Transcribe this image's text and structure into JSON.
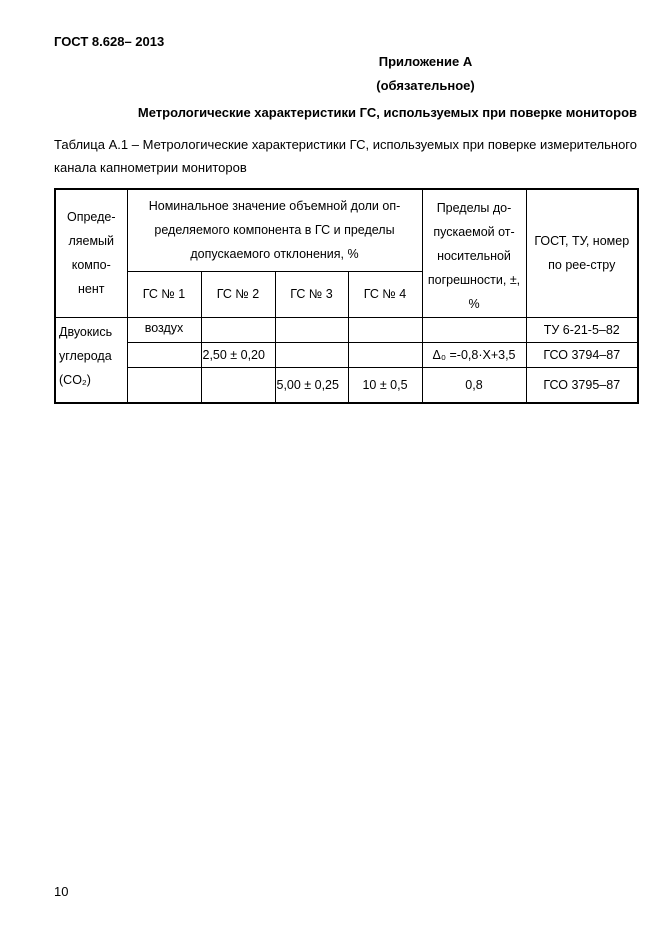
{
  "header": {
    "doc_id": "ГОСТ 8.628– 2013"
  },
  "appendix": {
    "title": "Приложение А",
    "status": "(обязательное)"
  },
  "section_title": "Метрологические характеристики ГС, используемых при поверке мониторов",
  "table_caption": "Таблица А.1 – Метрологические характеристики ГС, используемых при поверке измерительного канала капнометрии мониторов",
  "table": {
    "headers": {
      "component": "Опреде-ляемый компо-нент",
      "nominal": "Номинальное значение объемной доли оп-ределяемого компонента в ГС и пределы допускаемого отклонения, %",
      "gs": [
        "ГС № 1",
        "ГС № 2",
        "ГС № 3",
        "ГС № 4"
      ],
      "error": "Пределы до-пускаемой от-носительной погрешности, ±, %",
      "standard": "ГОСТ, ТУ, номер по рее-стру"
    },
    "component": "Двуокись углерода (CO₂)",
    "rows": [
      {
        "gs1": "воздух",
        "gs2": "",
        "gs3": "",
        "gs4": "",
        "error": "",
        "standard": "ТУ 6-21-5–82"
      },
      {
        "gs1": "",
        "gs2": "2,50 ± 0,20",
        "gs3": "",
        "gs4": "",
        "error": "Δ₀ =-0,8·X+3,5",
        "standard": "ГСО 3794–87"
      },
      {
        "gs1": "",
        "gs2": "",
        "gs3": "5,00 ± 0,25",
        "gs4": "10 ± 0,5",
        "error": "0,8",
        "standard": "ГСО 3795–87"
      }
    ]
  },
  "footer": {
    "page_number": "10"
  }
}
